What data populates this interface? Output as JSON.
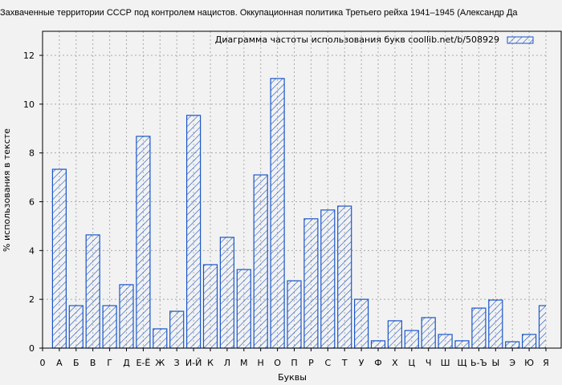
{
  "chart_data": {
    "type": "bar",
    "title": "Захваченные территории СССР под контролем нацистов. Оккупационная политика Третьего рейха 1941–1945 (Александр Да",
    "xlabel": "Буквы",
    "ylabel": "% использования в тексте",
    "x_origin_label": "0",
    "categories": [
      "А",
      "Б",
      "В",
      "Г",
      "Д",
      "Е-Ё",
      "Ж",
      "З",
      "И-Й",
      "К",
      "Л",
      "М",
      "Н",
      "О",
      "П",
      "Р",
      "С",
      "Т",
      "У",
      "Ф",
      "Х",
      "Ц",
      "Ч",
      "Ш",
      "Щ",
      "Ь-Ъ",
      "Ы",
      "Э",
      "Ю",
      "Я"
    ],
    "series": [
      {
        "name": "Диаграмма частоты использования букв  coollib.net/b/508929",
        "values": [
          7.33,
          1.74,
          4.64,
          1.74,
          2.6,
          8.68,
          0.79,
          1.51,
          9.54,
          3.42,
          4.54,
          3.22,
          7.1,
          11.05,
          2.76,
          5.3,
          5.66,
          5.82,
          2.0,
          0.3,
          1.12,
          0.72,
          1.25,
          0.56,
          0.3,
          1.64,
          1.97,
          0.26,
          0.56,
          1.74
        ]
      }
    ],
    "ylim": [
      0,
      13
    ],
    "yticks": [
      0,
      2,
      4,
      6,
      8,
      10,
      12
    ],
    "grid": true,
    "legend": "top-right",
    "colors": {
      "bar": "#1a56c8",
      "background": "#f2f2f2",
      "plot": "#f2f2f2"
    }
  }
}
